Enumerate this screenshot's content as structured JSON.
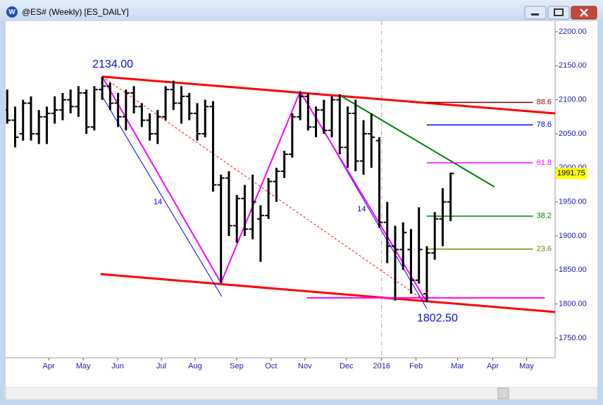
{
  "window": {
    "title": "@ES# (Weekly) [ES_DAILY]"
  },
  "chart_data": {
    "type": "ohlc",
    "x": [
      0,
      1,
      2,
      3,
      4,
      5,
      6,
      7,
      8,
      9,
      10,
      11,
      12,
      13,
      14,
      15,
      16,
      17,
      18,
      19,
      20,
      21,
      22,
      23,
      24,
      25,
      26,
      27,
      28,
      29,
      30,
      31,
      32,
      33,
      34,
      35,
      36,
      37,
      38,
      39,
      40,
      41,
      42,
      43,
      44,
      45,
      46,
      47,
      48,
      49,
      50,
      51,
      52,
      53,
      54,
      55,
      56
    ],
    "open": [
      2085,
      2070,
      2050,
      2095,
      2050,
      2075,
      2080,
      2085,
      2100,
      2090,
      2110,
      2060,
      2115,
      2120,
      2095,
      2075,
      2110,
      2090,
      2070,
      2050,
      2075,
      2115,
      2095,
      2105,
      2080,
      2050,
      2090,
      1975,
      1985,
      1915,
      1955,
      1910,
      1925,
      1930,
      1980,
      1995,
      2020,
      2075,
      2105,
      2060,
      2085,
      2055,
      2100,
      2030,
      2080,
      2010,
      2050,
      2040,
      1920,
      1885,
      1880,
      1880,
      1835,
      1815,
      1875,
      1925,
      1950
    ],
    "high": [
      2115,
      2090,
      2100,
      2105,
      2085,
      2090,
      2105,
      2110,
      2115,
      2120,
      2115,
      2120,
      2134,
      2125,
      2110,
      2115,
      2120,
      2095,
      2080,
      2085,
      2120,
      2128,
      2120,
      2110,
      2095,
      2100,
      2098,
      1990,
      1995,
      1960,
      1975,
      1990,
      1945,
      1985,
      2000,
      2025,
      2080,
      2112,
      2110,
      2090,
      2100,
      2105,
      2108,
      2090,
      2100,
      2070,
      2080,
      2045,
      1950,
      1915,
      1920,
      1910,
      1942,
      1885,
      1935,
      1970,
      1993
    ],
    "low": [
      2065,
      2030,
      2040,
      2040,
      2035,
      2035,
      2065,
      2070,
      2080,
      2075,
      2050,
      2055,
      2100,
      2085,
      2060,
      2055,
      2080,
      2060,
      2040,
      2035,
      2070,
      2085,
      2065,
      2070,
      2040,
      2045,
      1965,
      1831,
      1900,
      1890,
      1900,
      1895,
      1862,
      1925,
      1950,
      1985,
      2015,
      2070,
      2055,
      2045,
      2050,
      2045,
      2020,
      2000,
      1995,
      1990,
      2000,
      1912,
      1860,
      1805,
      1850,
      1815,
      1830,
      1802.5,
      1865,
      1885,
      1922
    ],
    "close": [
      2070,
      2045,
      2095,
      2050,
      2075,
      2080,
      2085,
      2100,
      2090,
      2110,
      2060,
      2115,
      2120,
      2095,
      2075,
      2110,
      2090,
      2070,
      2050,
      2075,
      2115,
      2095,
      2105,
      2080,
      2050,
      2090,
      1975,
      1985,
      1915,
      1955,
      1910,
      1950,
      1930,
      1980,
      1995,
      2020,
      2075,
      2105,
      2060,
      2085,
      2055,
      2100,
      2030,
      2080,
      2010,
      2050,
      2045,
      1920,
      1885,
      1880,
      1905,
      1835,
      1880,
      1875,
      1925,
      1950,
      1991.75
    ],
    "color": "#000000",
    "xlim": [
      -0.2,
      69.2
    ],
    "xticks": [
      {
        "value": 5.24,
        "label": "Apr"
      },
      {
        "value": 9.6,
        "label": "May"
      },
      {
        "value": 13.96,
        "label": "Jun"
      },
      {
        "value": 19.47,
        "label": "Jul"
      },
      {
        "value": 23.73,
        "label": "Aug"
      },
      {
        "value": 28.98,
        "label": "Sep"
      },
      {
        "value": 33.33,
        "label": "Oct"
      },
      {
        "value": 37.6,
        "label": "Nov"
      },
      {
        "value": 42.84,
        "label": "Dec"
      },
      {
        "value": 47.29,
        "label": "2016"
      },
      {
        "value": 51.64,
        "label": "Feb"
      },
      {
        "value": 56.89,
        "label": "Mar"
      },
      {
        "value": 61.33,
        "label": "Apr"
      },
      {
        "value": 65.6,
        "label": "May"
      }
    ],
    "ylim": [
      1721,
      2215.5
    ],
    "yticks": [
      {
        "value": 1750,
        "label": "1750.00"
      },
      {
        "value": 1800,
        "label": "1800.00"
      },
      {
        "value": 1850,
        "label": "1850.00"
      },
      {
        "value": 1900,
        "label": "1900.00"
      },
      {
        "value": 1950,
        "label": "1950.00"
      },
      {
        "value": 2000,
        "label": "2000.00"
      },
      {
        "value": 2050,
        "label": "2050.00"
      },
      {
        "value": 2100,
        "label": "2100.00"
      },
      {
        "value": 2150,
        "label": "2150.00"
      },
      {
        "value": 2200,
        "label": "2200.00"
      }
    ],
    "separator_x": 47.29,
    "trendlines": [
      {
        "color": "#ff0000",
        "width": 3,
        "x": [
          12,
          69.2
        ],
        "y": [
          2134,
          2080
        ]
      },
      {
        "color": "#ff0000",
        "width": 3,
        "x": [
          11.8,
          69.2
        ],
        "y": [
          1844,
          1788.3
        ]
      },
      {
        "color": "#ff0000",
        "width": 1,
        "dashed": true,
        "x": [
          12,
          53
        ],
        "y": [
          2134,
          1802.5
        ]
      },
      {
        "color": "#0000ff",
        "width": 1,
        "x": [
          12,
          27.1
        ],
        "y": [
          2105,
          1811
        ],
        "label": "14"
      },
      {
        "color": "#0000ff",
        "width": 1,
        "x": [
          37.6,
          53
        ],
        "y": [
          2102,
          1793
        ],
        "label": "14"
      },
      {
        "color": "#008000",
        "width": 2,
        "x": [
          42.24,
          61.55
        ],
        "y": [
          2105,
          1972
        ]
      },
      {
        "color": "#ff00ff",
        "width": 2,
        "x": [
          12,
          27,
          37,
          53
        ],
        "y": [
          2134,
          1831,
          2112,
          1802.5
        ]
      },
      {
        "color": "#ff00ff",
        "width": 2,
        "x": [
          37.8,
          67.9
        ],
        "y": [
          1809,
          1809
        ]
      }
    ],
    "fib": {
      "x": [
        53,
        66.4
      ],
      "levels": [
        {
          "ratio": 88.6,
          "price": 2096.2,
          "color": "#8b0000"
        },
        {
          "ratio": 78.6,
          "price": 2063.1,
          "color": "#0000ff"
        },
        {
          "ratio": 61.8,
          "price": 2007.4,
          "color": "#ff00ff"
        },
        {
          "ratio": 38.2,
          "price": 1929.1,
          "color": "#008000"
        },
        {
          "ratio": 23.6,
          "price": 1880.7,
          "color": "#808000"
        }
      ]
    },
    "annotations": [
      {
        "label": "2134.00",
        "x": 12,
        "value": 2134
      },
      {
        "label": "1802.50",
        "x": 53,
        "value": 1802.5
      }
    ]
  }
}
